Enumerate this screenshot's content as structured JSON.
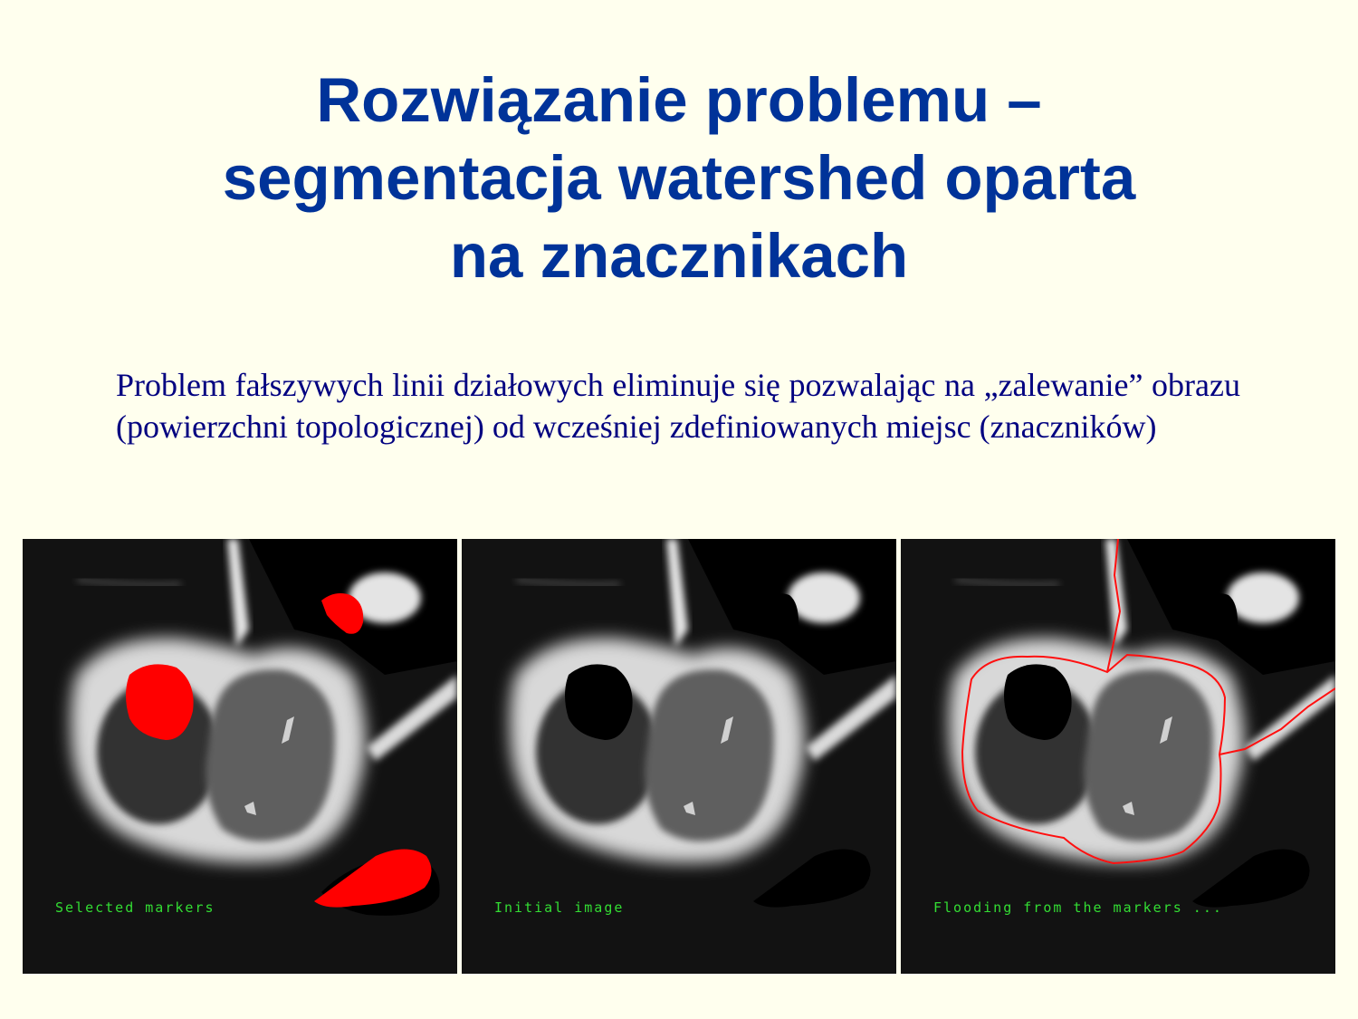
{
  "slide": {
    "title_lines": [
      "Rozwiązanie problemu –",
      "segmentacja watershed oparta",
      "na znacznikach"
    ],
    "body": "Problem fałszywych linii działowych eliminuje się pozwalając na „zalewanie” obrazu (powierzchni topologicznej) od wcześniej zdefiniowanych miejsc (znaczników)"
  },
  "panels": [
    {
      "caption": "Selected markers",
      "markers": "red"
    },
    {
      "caption": "Initial image",
      "markers": "none"
    },
    {
      "caption": "Flooding from the markers ...",
      "markers": "contour"
    }
  ],
  "colors": {
    "title": "#003399",
    "body": "#000080",
    "background": "#ffffee",
    "marker": "#ff0000",
    "caption": "#33dd33"
  }
}
